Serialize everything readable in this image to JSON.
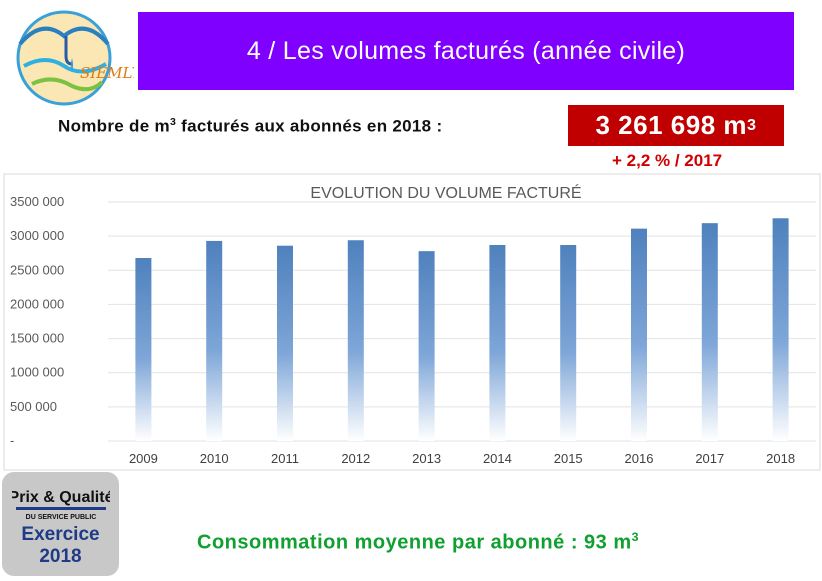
{
  "header": {
    "logo_text": "SIEMLY",
    "title": "4 / Les volumes facturés (année civile)"
  },
  "kpi": {
    "label_prefix": "Nombre de m",
    "label_sup": "3",
    "label_suffix": " facturés aux abonnés en 2018 :",
    "value": "3 261 698 m",
    "value_sup": "3",
    "change": "+ 2,2 % / 2017"
  },
  "badge": {
    "logo_line1": "Prix & Qualité",
    "logo_line2": "DU SERVICE PUBLIC",
    "label_line1": "Exercice",
    "label_line2": "2018"
  },
  "average": {
    "text": "Consommation moyenne par abonné : 93 m",
    "sup": "3"
  },
  "colors": {
    "title_band": "#7f00ff",
    "kpi_box": "#c00000",
    "kpi_change": "#d00000",
    "bar": "#4f81bd",
    "average_text": "#10a030"
  },
  "chart_data": {
    "type": "bar",
    "title": "EVOLUTION DU VOLUME FACTURÉ",
    "categories": [
      "2009",
      "2010",
      "2011",
      "2012",
      "2013",
      "2014",
      "2015",
      "2016",
      "2017",
      "2018"
    ],
    "values": [
      2680000,
      2930000,
      2860000,
      2940000,
      2780000,
      2870000,
      2870000,
      3110000,
      3190000,
      3261698
    ],
    "ylim": [
      0,
      3500000
    ],
    "yticks": [
      0,
      500000,
      1000000,
      1500000,
      2000000,
      2500000,
      3000000,
      3500000
    ],
    "ytick_labels": [
      "-",
      "500 000",
      "1000 000",
      "1500 000",
      "2000 000",
      "2500 000",
      "3000 000",
      "3500 000"
    ],
    "xlabel": "",
    "ylabel": "",
    "grid": true,
    "legend": false
  }
}
